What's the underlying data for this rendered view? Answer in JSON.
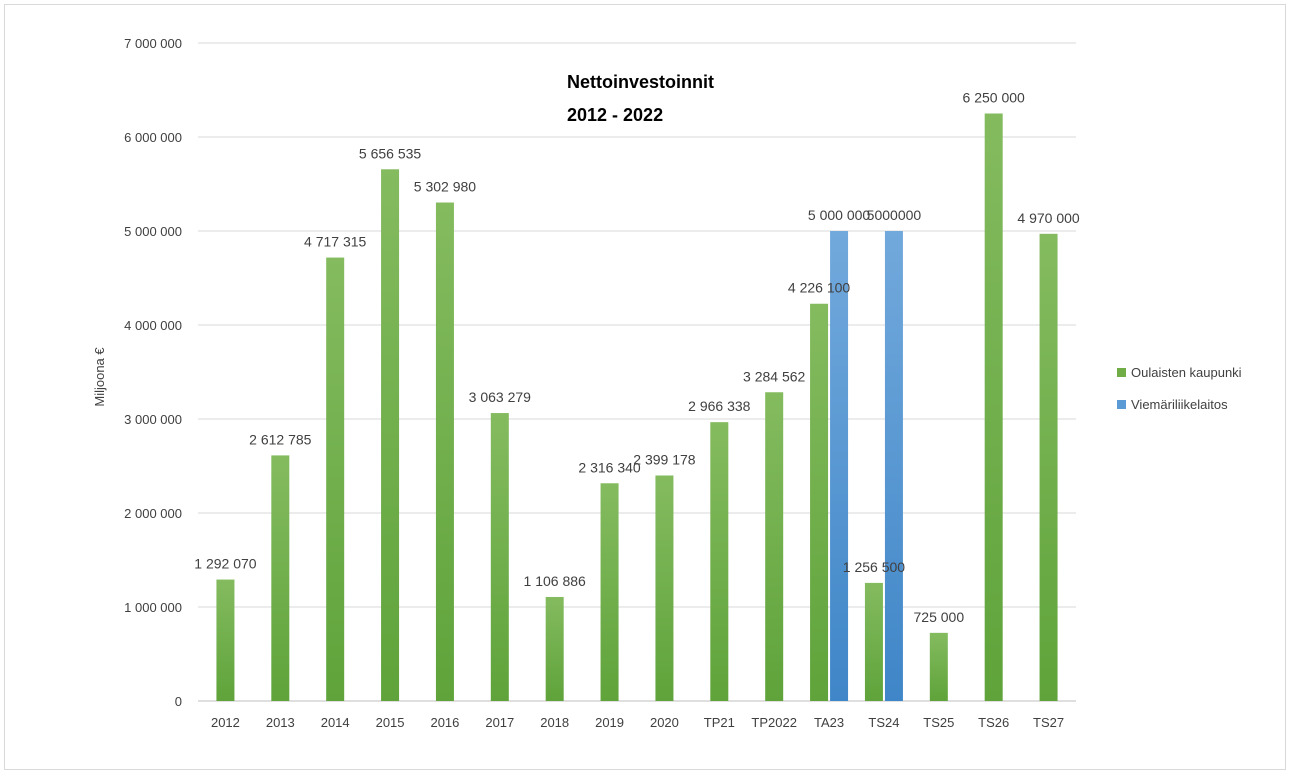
{
  "chart_data": {
    "type": "bar",
    "title_lines": [
      "Nettoinvestoinnit",
      "2012 - 2022"
    ],
    "ylabel": "Miljoona €",
    "xlabel": "",
    "ylim": [
      0,
      7000000
    ],
    "yticks": [
      0,
      1000000,
      2000000,
      3000000,
      4000000,
      5000000,
      6000000,
      7000000
    ],
    "ytick_labels": [
      "0",
      "1 000 000",
      "2 000 000",
      "3 000 000",
      "4 000 000",
      "5 000 000",
      "6 000 000",
      "7 000 000"
    ],
    "grid": true,
    "legend_position": "right",
    "categories": [
      "2012",
      "2013",
      "2014",
      "2015",
      "2016",
      "2017",
      "2018",
      "2019",
      "2020",
      "TP21",
      "TP2022",
      "TA23",
      "TS24",
      "TS25",
      "TS26",
      "TS27"
    ],
    "series": [
      {
        "name": "Oulaisten kaupunki",
        "color": "#70ad47",
        "values": [
          1292070,
          2612785,
          4717315,
          5656535,
          5302980,
          3063279,
          1106886,
          2316340,
          2399178,
          2966338,
          3284562,
          4226100,
          1256500,
          725000,
          6250000,
          4970000
        ],
        "labels": [
          "1 292 070",
          "2 612 785",
          "4 717 315",
          "5 656 535",
          "5 302 980",
          "3 063 279",
          "1 106 886",
          "2 316 340",
          "2 399 178",
          "2 966 338",
          "3 284 562",
          "4 226 100",
          "1 256 500",
          "725 000",
          "6 250 000",
          "4 970 000"
        ]
      },
      {
        "name": "Viemäriliikelaitos",
        "color": "#5b9bd5",
        "values": [
          null,
          null,
          null,
          null,
          null,
          null,
          null,
          null,
          null,
          null,
          null,
          5000000,
          5000000,
          null,
          null,
          null
        ],
        "labels": [
          "",
          "",
          "",
          "",
          "",
          "",
          "",
          "",
          "",
          "",
          "",
          "5 000 000",
          "5000000",
          "",
          "",
          ""
        ]
      }
    ]
  }
}
